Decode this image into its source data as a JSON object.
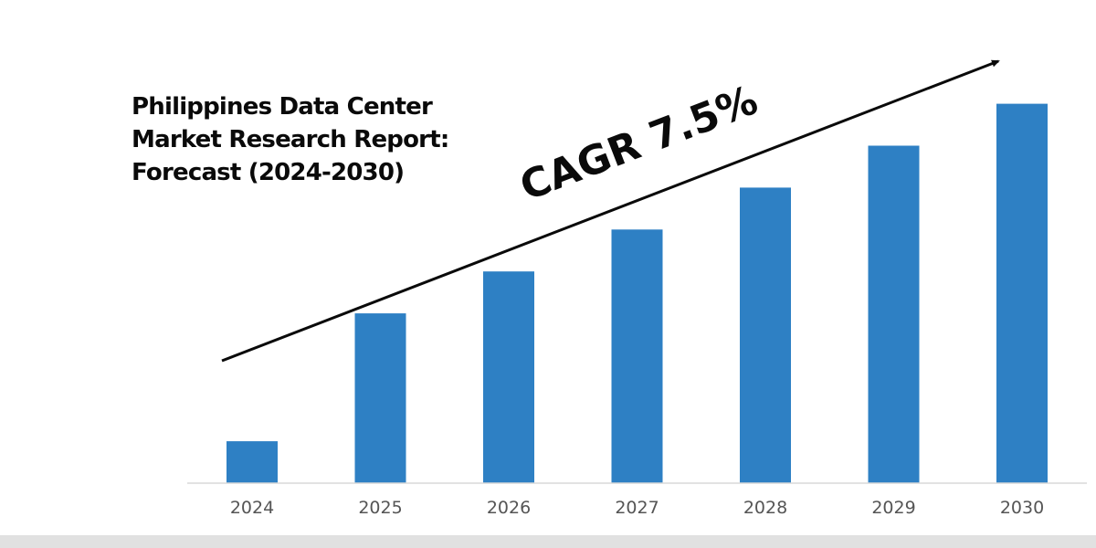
{
  "chart_data": {
    "type": "bar",
    "title_lines": [
      "Philippines Data Center",
      "Market Research Report:",
      "Forecast (2024-2030)"
    ],
    "annotation": "CAGR 7.5%",
    "categories": [
      "2024",
      "2025",
      "2026",
      "2027",
      "2028",
      "2029",
      "2030"
    ],
    "values": [
      10,
      40.5,
      50.5,
      60.5,
      70.5,
      80.5,
      90.5
    ],
    "ylim": [
      0,
      100
    ],
    "xlabel": "",
    "ylabel": "",
    "grid": false,
    "legend": "none",
    "bar_color": "#2e80c4",
    "axis_color": "#d9d9d9",
    "arrow_color": "#0a0a0a"
  }
}
